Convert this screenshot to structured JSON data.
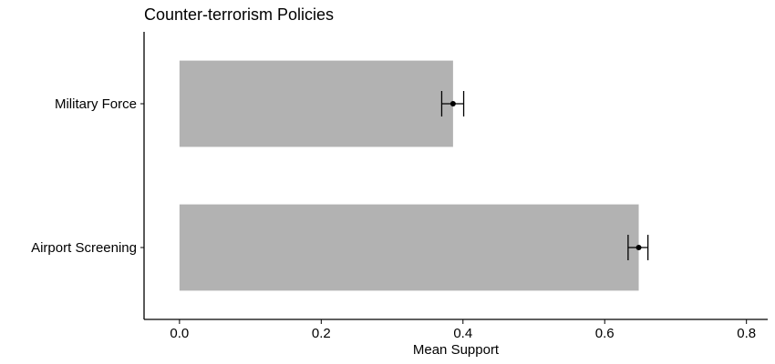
{
  "chart_data": {
    "type": "bar",
    "orientation": "horizontal",
    "title": "Counter-terrorism Policies",
    "xlabel": "Mean Support",
    "ylabel": "",
    "categories": [
      "Military Force",
      "Airport Screening"
    ],
    "values": [
      0.386,
      0.648
    ],
    "error_bars": [
      {
        "low": 0.37,
        "high": 0.401
      },
      {
        "low": 0.633,
        "high": 0.661
      }
    ],
    "xlim": [
      -0.05,
      0.83
    ],
    "xticks": [
      0.0,
      0.2,
      0.4,
      0.6,
      0.8
    ],
    "xtick_labels": [
      "0.0",
      "0.2",
      "0.4",
      "0.6",
      "0.8"
    ],
    "grid": false,
    "colors": {
      "bar": "#b2b2b2",
      "error": "#000000",
      "axis": "#000000"
    }
  }
}
